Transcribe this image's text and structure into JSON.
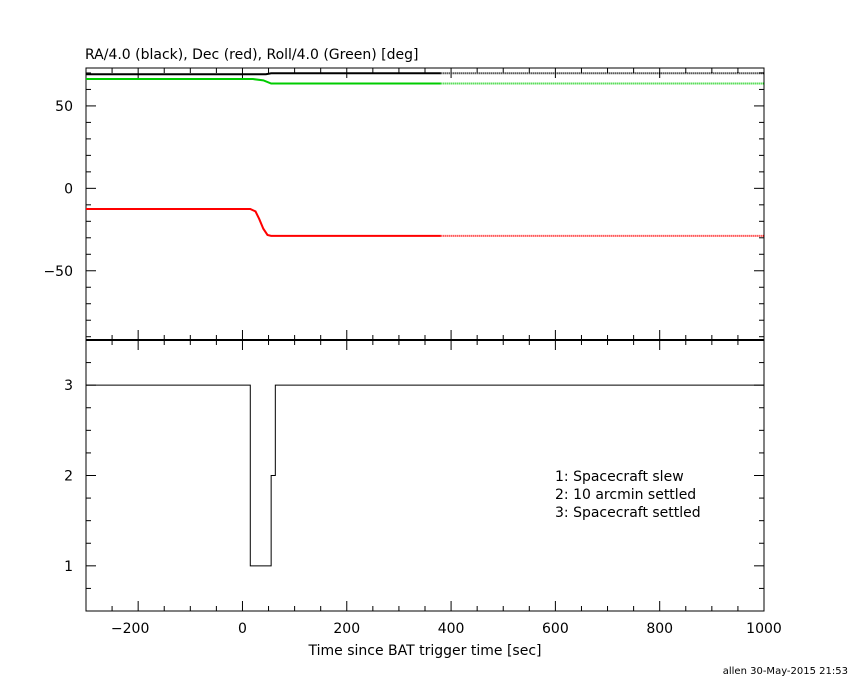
{
  "chart_data": [
    {
      "type": "line",
      "title": "RA/4.0 (black), Dec (red), Roll/4.0 (Green) [deg]",
      "xlabel": "",
      "ylabel": "",
      "xlim": [
        -300,
        1000
      ],
      "ylim": [
        -92,
        73
      ],
      "yticks": [
        -50,
        0,
        50
      ],
      "grid": false,
      "series": [
        {
          "color": "#000000",
          "x": [
            -300,
            45,
            55,
            380,
            1000
          ],
          "values": [
            69.2,
            69.2,
            69.8,
            69.8,
            69.8
          ],
          "dotted_from_x": 380
        },
        {
          "color": "#00cc00",
          "x": [
            -300,
            20,
            40,
            55,
            380,
            1000
          ],
          "values": [
            66.3,
            66.3,
            65.5,
            63.6,
            63.6,
            63.6
          ],
          "dotted_from_x": 380
        },
        {
          "color": "#ff0000",
          "x": [
            -300,
            15,
            25,
            32,
            40,
            48,
            55,
            380,
            1000
          ],
          "values": [
            -12.5,
            -12.5,
            -14.0,
            -18.5,
            -24.5,
            -28.3,
            -28.8,
            -28.8,
            -28.8
          ],
          "dotted_from_x": 380
        }
      ]
    },
    {
      "type": "line",
      "title": "",
      "xlabel": "Time since BAT trigger time [sec]",
      "ylabel": "",
      "xlim": [
        -300,
        1000
      ],
      "ylim": [
        0.5,
        3.5
      ],
      "xticks": [
        -200,
        0,
        200,
        400,
        600,
        800,
        1000
      ],
      "yticks": [
        1,
        2,
        3
      ],
      "grid": false,
      "series": [
        {
          "color": "#000000",
          "step": true,
          "x": [
            -300,
            15,
            15,
            55,
            55,
            63,
            63,
            1000
          ],
          "values": [
            3,
            3,
            1,
            1,
            2,
            2,
            3,
            3
          ]
        }
      ],
      "annotations": [
        "1: Spacecraft slew",
        "2: 10 arcmin settled",
        "3: Spacecraft settled"
      ]
    }
  ],
  "footer": "allen 30-May-2015 21:53"
}
